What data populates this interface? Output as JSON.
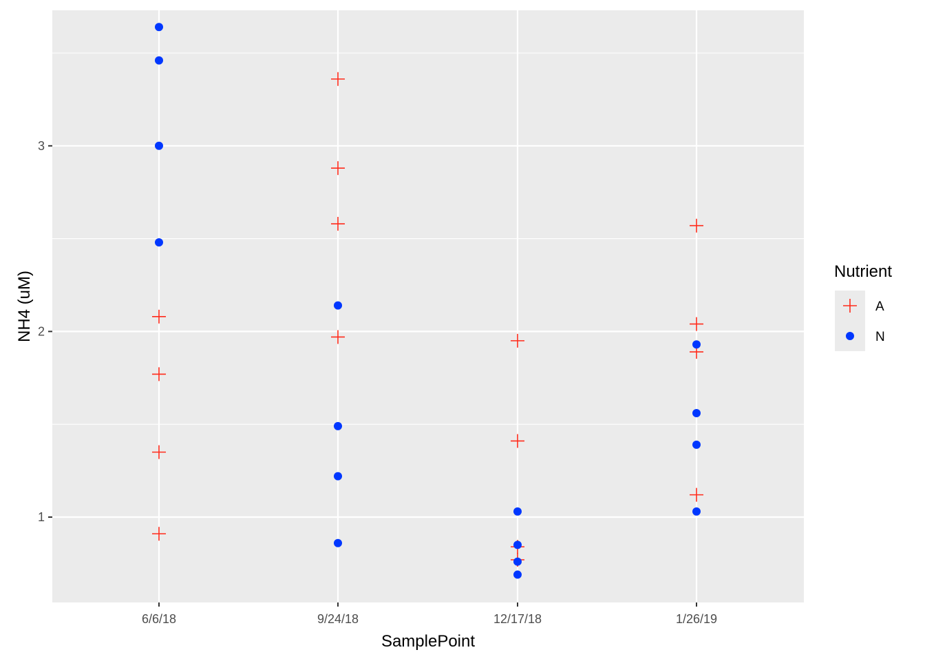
{
  "chart_data": {
    "type": "scatter",
    "title": "",
    "xlabel": "SamplePoint",
    "ylabel": "NH4 (uM)",
    "categories": [
      "6/6/18",
      "9/24/18",
      "12/17/18",
      "1/26/19"
    ],
    "ylim": [
      0.54,
      3.73
    ],
    "yticks": [
      1,
      2,
      3
    ],
    "grid": true,
    "legend": {
      "title": "Nutrient",
      "placement": "right",
      "entries": [
        {
          "label": "A",
          "shape": "plus",
          "color": "#ff2a1a"
        },
        {
          "label": "N",
          "shape": "circle",
          "color": "#0037ff"
        }
      ]
    },
    "series": [
      {
        "name": "A",
        "shape": "plus",
        "color": "#ff2a1a",
        "points": [
          {
            "x": "6/6/18",
            "y": 2.08
          },
          {
            "x": "6/6/18",
            "y": 1.77
          },
          {
            "x": "6/6/18",
            "y": 1.35
          },
          {
            "x": "6/6/18",
            "y": 0.91
          },
          {
            "x": "9/24/18",
            "y": 3.36
          },
          {
            "x": "9/24/18",
            "y": 2.88
          },
          {
            "x": "9/24/18",
            "y": 2.58
          },
          {
            "x": "9/24/18",
            "y": 1.97
          },
          {
            "x": "12/17/18",
            "y": 1.95
          },
          {
            "x": "12/17/18",
            "y": 1.41
          },
          {
            "x": "12/17/18",
            "y": 0.84
          },
          {
            "x": "12/17/18",
            "y": 0.77
          },
          {
            "x": "1/26/19",
            "y": 2.57
          },
          {
            "x": "1/26/19",
            "y": 2.04
          },
          {
            "x": "1/26/19",
            "y": 1.89
          },
          {
            "x": "1/26/19",
            "y": 1.12
          }
        ]
      },
      {
        "name": "N",
        "shape": "circle",
        "color": "#0037ff",
        "points": [
          {
            "x": "6/6/18",
            "y": 3.64
          },
          {
            "x": "6/6/18",
            "y": 3.46
          },
          {
            "x": "6/6/18",
            "y": 3.0
          },
          {
            "x": "6/6/18",
            "y": 2.48
          },
          {
            "x": "9/24/18",
            "y": 2.14
          },
          {
            "x": "9/24/18",
            "y": 1.49
          },
          {
            "x": "9/24/18",
            "y": 1.22
          },
          {
            "x": "9/24/18",
            "y": 0.86
          },
          {
            "x": "12/17/18",
            "y": 1.03
          },
          {
            "x": "12/17/18",
            "y": 0.85
          },
          {
            "x": "12/17/18",
            "y": 0.76
          },
          {
            "x": "12/17/18",
            "y": 0.69
          },
          {
            "x": "1/26/19",
            "y": 1.93
          },
          {
            "x": "1/26/19",
            "y": 1.56
          },
          {
            "x": "1/26/19",
            "y": 1.39
          },
          {
            "x": "1/26/19",
            "y": 1.03
          }
        ]
      }
    ],
    "colors": {
      "panel_background": "#ebebeb",
      "grid_line": "#ffffff",
      "tick_text": "#4d4d4d",
      "tick_mark": "#333333"
    }
  }
}
